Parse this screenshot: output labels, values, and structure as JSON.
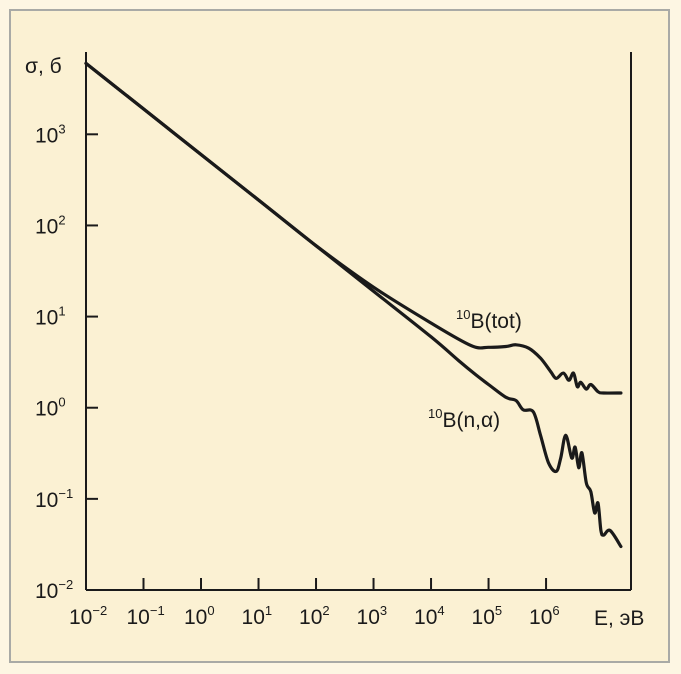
{
  "chart_data": {
    "type": "line",
    "x_scale": "log",
    "y_scale": "log",
    "xlabel": "E, эВ",
    "ylabel": "σ, б",
    "xlim": [
      0.01,
      30000000
    ],
    "ylim": [
      0.01,
      8000
    ],
    "grid": false,
    "x_ticks": [
      {
        "value": 0.01,
        "base": "10",
        "exp": "−2"
      },
      {
        "value": 0.1,
        "base": "10",
        "exp": "−1"
      },
      {
        "value": 1,
        "base": "10",
        "exp": "0"
      },
      {
        "value": 10,
        "base": "10",
        "exp": "1"
      },
      {
        "value": 100,
        "base": "10",
        "exp": "2"
      },
      {
        "value": 1000,
        "base": "10",
        "exp": "3"
      },
      {
        "value": 10000,
        "base": "10",
        "exp": "4"
      },
      {
        "value": 100000,
        "base": "10",
        "exp": "5"
      },
      {
        "value": 1000000,
        "base": "10",
        "exp": "6"
      }
    ],
    "y_ticks": [
      {
        "value": 0.01,
        "base": "10",
        "exp": "−2"
      },
      {
        "value": 0.1,
        "base": "10",
        "exp": "−1"
      },
      {
        "value": 1,
        "base": "10",
        "exp": "0"
      },
      {
        "value": 10,
        "base": "10",
        "exp": "1"
      },
      {
        "value": 100,
        "base": "10",
        "exp": "2"
      },
      {
        "value": 1000,
        "base": "10",
        "exp": "3"
      }
    ],
    "series": [
      {
        "name": "B(tot)",
        "name_prefix": "10",
        "x": [
          0.01,
          0.1,
          1,
          10,
          100,
          1000,
          10000,
          50000,
          100000,
          200000,
          300000,
          500000,
          800000,
          1200000,
          1500000,
          2000000,
          2500000,
          3000000,
          3500000,
          4000000,
          5000000,
          6000000,
          8000000,
          10000000,
          20000000
        ],
        "y": [
          6000,
          1900,
          600,
          190,
          60,
          21,
          8.5,
          4.8,
          4.6,
          4.7,
          4.9,
          4.5,
          3.5,
          2.5,
          2.1,
          2.4,
          2.0,
          2.4,
          1.7,
          1.9,
          1.6,
          1.8,
          1.5,
          1.45,
          1.45
        ]
      },
      {
        "name": "B(n,α)",
        "name_prefix": "10",
        "x": [
          0.01,
          0.1,
          1,
          10,
          100,
          1000,
          10000,
          30000,
          60000,
          100000,
          200000,
          300000,
          400000,
          600000,
          800000,
          1100000,
          1500000,
          1800000,
          2200000,
          2800000,
          3200000,
          3700000,
          4200000,
          5000000,
          6000000,
          7000000,
          8000000,
          9000000,
          10000000,
          13000000,
          20000000
        ],
        "y": [
          6000,
          1900,
          600,
          190,
          60,
          19,
          6,
          3.3,
          2.3,
          1.8,
          1.3,
          1.2,
          0.95,
          0.9,
          0.5,
          0.25,
          0.2,
          0.28,
          0.5,
          0.28,
          0.37,
          0.22,
          0.32,
          0.15,
          0.12,
          0.07,
          0.09,
          0.045,
          0.04,
          0.045,
          0.03
        ]
      }
    ]
  }
}
